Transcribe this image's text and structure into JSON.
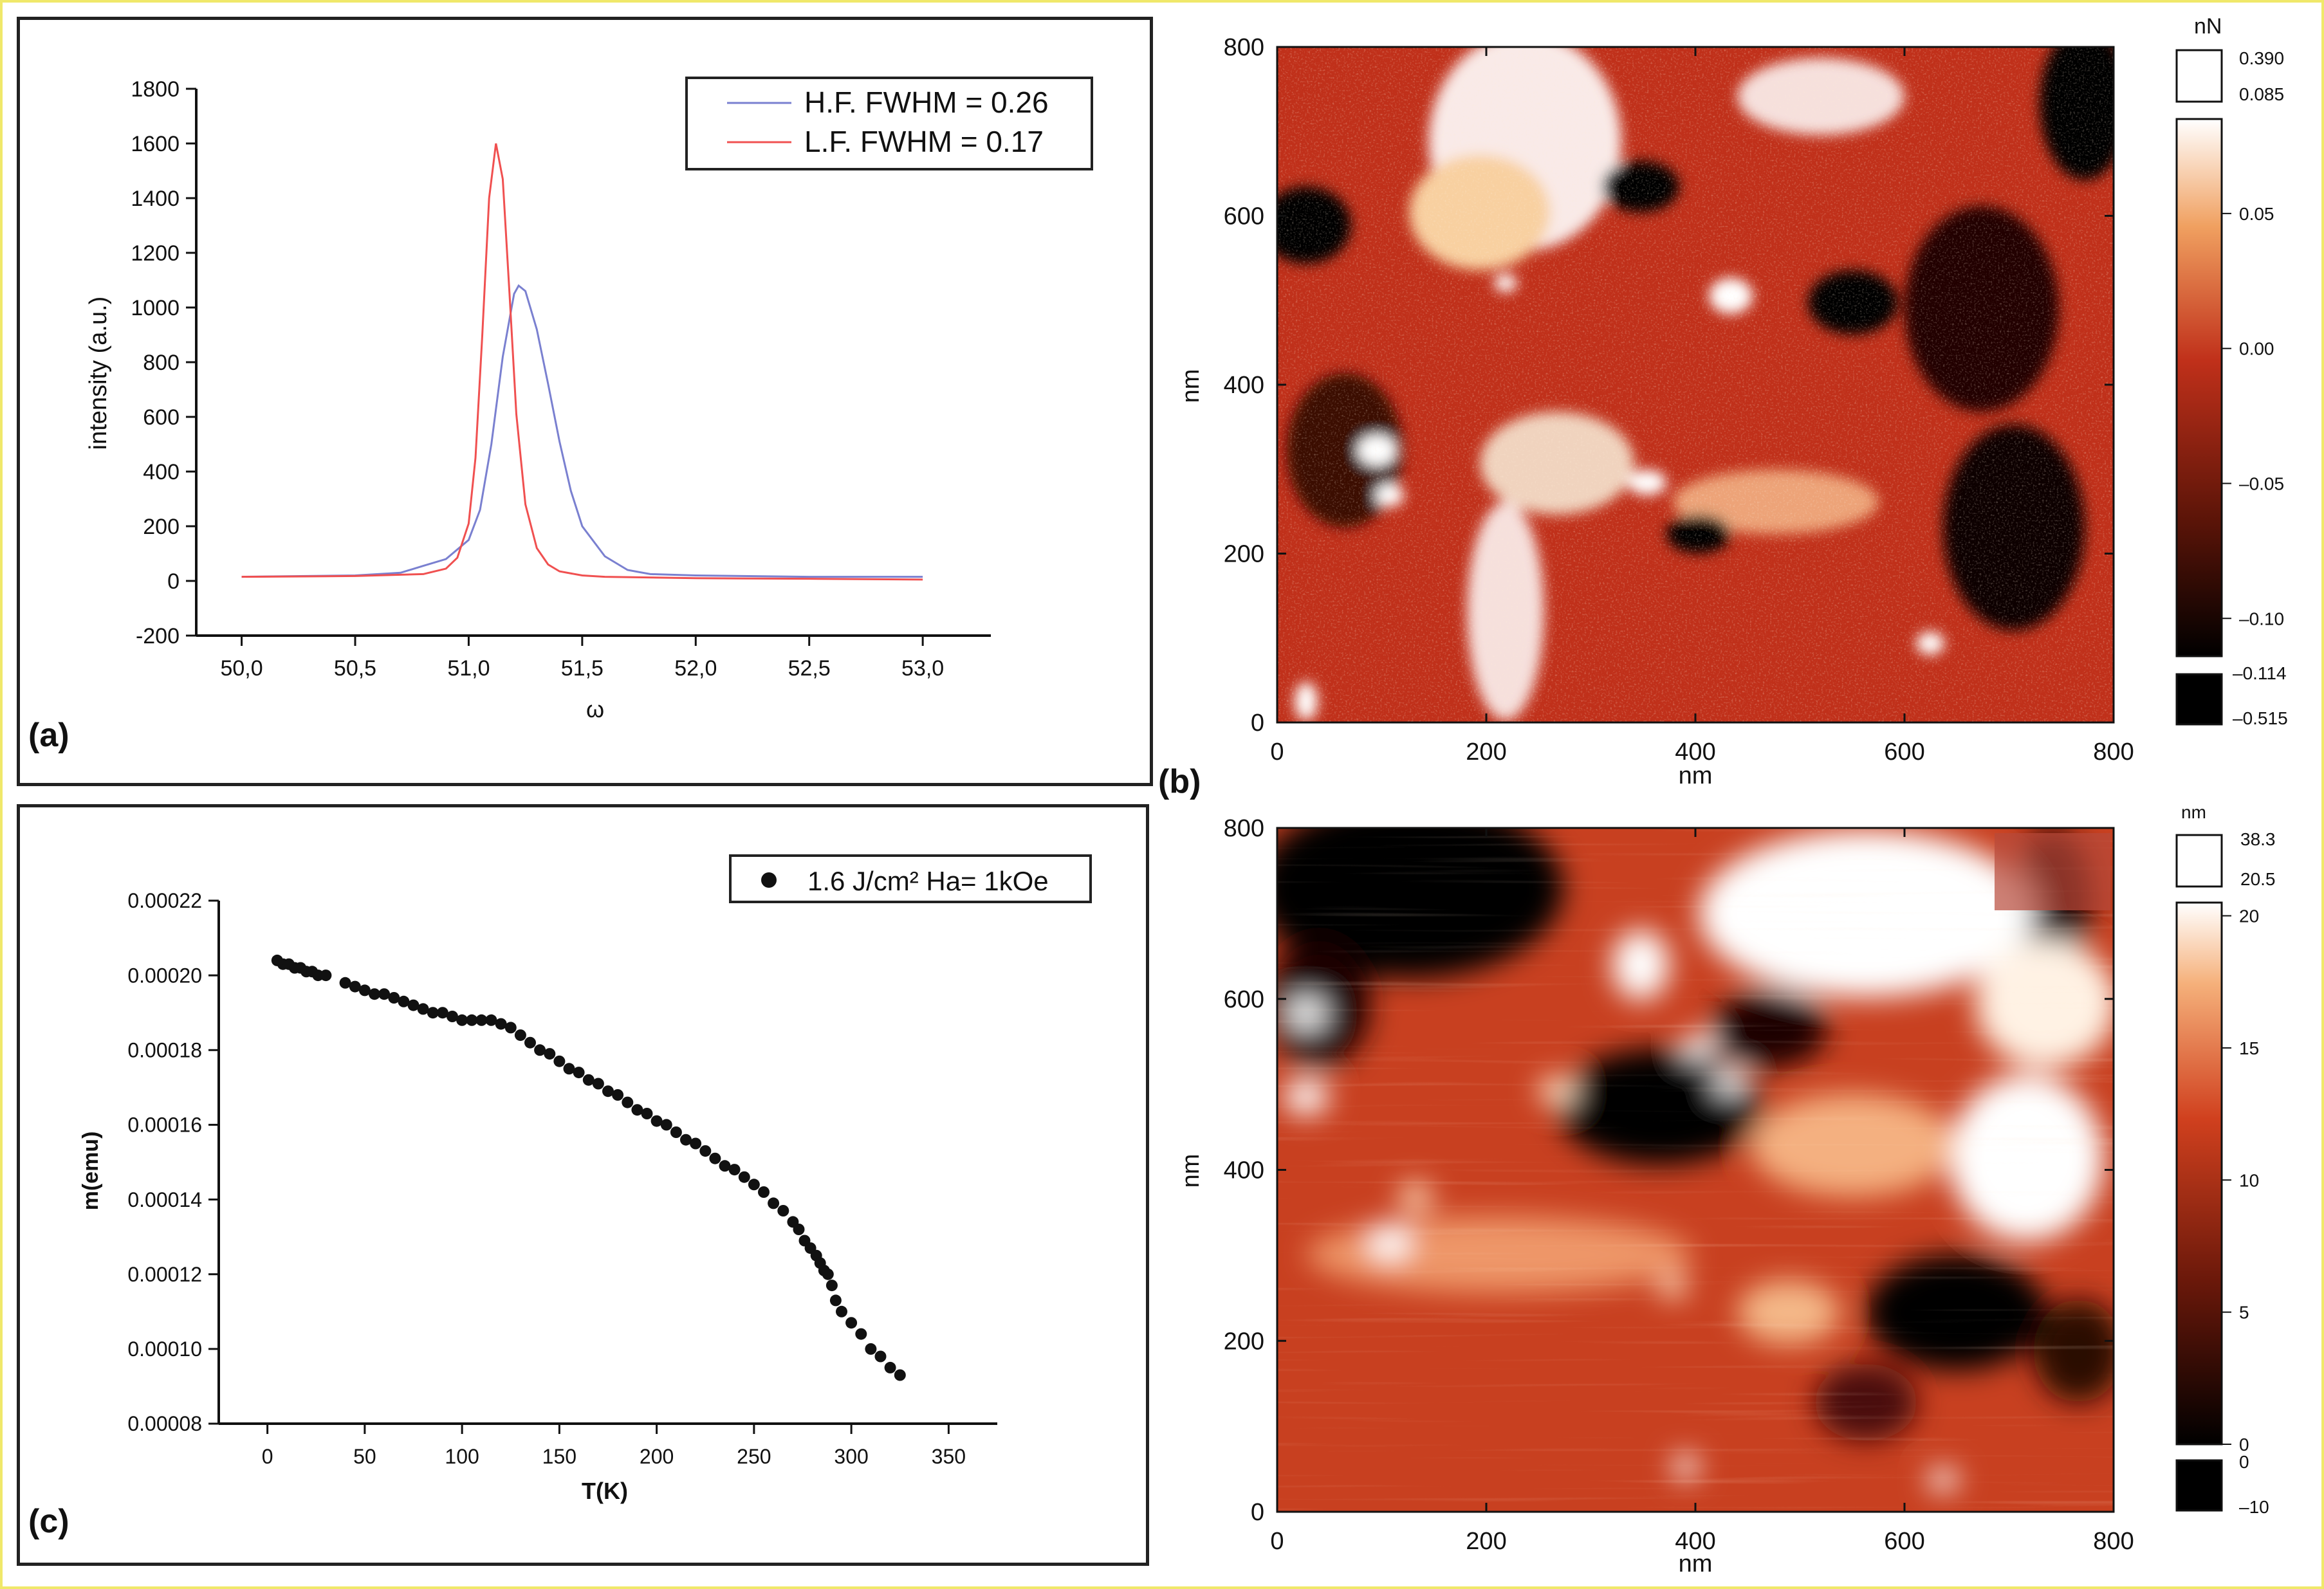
{
  "colors": {
    "hf_line": "#7a80d0",
    "lf_line": "#f05050",
    "marker": "#111111",
    "afm_dark": "#000000",
    "afm_mid": "#c0301a",
    "afm_light": "#ffffff"
  },
  "panel_labels": {
    "a": "(a)",
    "b": "(b)",
    "c": "(c)"
  },
  "chart_data": [
    {
      "id": "a",
      "type": "line",
      "title": "",
      "xlabel": "ω",
      "ylabel": "intensity (a.u.)",
      "xlim": [
        49.8,
        53.3
      ],
      "ylim": [
        -200,
        1800
      ],
      "xticks": [
        "50,0",
        "50,5",
        "51,0",
        "51,5",
        "52,0",
        "52,5",
        "53,0"
      ],
      "xtick_values": [
        50.0,
        50.5,
        51.0,
        51.5,
        52.0,
        52.5,
        53.0
      ],
      "yticks": [
        "-200",
        "0",
        "200",
        "400",
        "600",
        "800",
        "1000",
        "1200",
        "1400",
        "1600",
        "1800"
      ],
      "ytick_values": [
        -200,
        0,
        200,
        400,
        600,
        800,
        1000,
        1200,
        1400,
        1600,
        1800
      ],
      "legend_position": "top-right",
      "series": [
        {
          "name": "H.F. FWHM = 0.26",
          "x": [
            50.0,
            50.5,
            50.7,
            50.8,
            50.9,
            51.0,
            51.05,
            51.1,
            51.15,
            51.2,
            51.22,
            51.25,
            51.3,
            51.35,
            51.4,
            51.45,
            51.5,
            51.6,
            51.7,
            51.8,
            52.0,
            52.5,
            53.0
          ],
          "y": [
            15,
            20,
            30,
            55,
            80,
            150,
            260,
            500,
            820,
            1050,
            1080,
            1060,
            920,
            720,
            510,
            330,
            200,
            90,
            40,
            25,
            20,
            15,
            15
          ]
        },
        {
          "name": "L.F. FWHM = 0.17",
          "x": [
            50.0,
            50.5,
            50.8,
            50.9,
            50.95,
            51.0,
            51.03,
            51.06,
            51.09,
            51.12,
            51.15,
            51.18,
            51.21,
            51.25,
            51.3,
            51.35,
            51.4,
            51.5,
            51.6,
            52.0,
            52.5,
            53.0
          ],
          "y": [
            15,
            18,
            25,
            45,
            85,
            210,
            450,
            900,
            1400,
            1600,
            1470,
            1050,
            610,
            280,
            120,
            60,
            35,
            20,
            15,
            10,
            8,
            5
          ]
        }
      ]
    },
    {
      "id": "c",
      "type": "scatter",
      "title": "",
      "xlabel": "T(K)",
      "ylabel": "m(emu)",
      "xlim": [
        -25,
        375
      ],
      "ylim": [
        8e-05,
        0.00022
      ],
      "xticks": [
        "0",
        "50",
        "100",
        "150",
        "200",
        "250",
        "300",
        "350"
      ],
      "xtick_values": [
        0,
        50,
        100,
        150,
        200,
        250,
        300,
        350
      ],
      "yticks": [
        "0.00008",
        "0.00010",
        "0.00012",
        "0.00014",
        "0.00016",
        "0.00018",
        "0.00020",
        "0.00022"
      ],
      "ytick_values": [
        8e-05,
        0.0001,
        0.00012,
        0.00014,
        0.00016,
        0.00018,
        0.0002,
        0.00022
      ],
      "legend_position": "top-right",
      "series": [
        {
          "name": "1.6 J/cm² Ha= 1kOe",
          "x": [
            5,
            8,
            11,
            14,
            17,
            20,
            23,
            26,
            30,
            40,
            45,
            50,
            55,
            60,
            65,
            70,
            75,
            80,
            85,
            90,
            95,
            100,
            105,
            110,
            115,
            120,
            125,
            130,
            135,
            140,
            145,
            150,
            155,
            160,
            165,
            170,
            175,
            180,
            185,
            190,
            195,
            200,
            205,
            210,
            215,
            220,
            225,
            230,
            235,
            240,
            245,
            250,
            255,
            260,
            265,
            270,
            273,
            276,
            279,
            282,
            284,
            286,
            288,
            290,
            292,
            295,
            300,
            305,
            310,
            315,
            320,
            325
          ],
          "y": [
            0.000204,
            0.000203,
            0.000203,
            0.000202,
            0.000202,
            0.000201,
            0.000201,
            0.0002,
            0.0002,
            0.000198,
            0.000197,
            0.000196,
            0.000195,
            0.000195,
            0.000194,
            0.000193,
            0.000192,
            0.000191,
            0.00019,
            0.00019,
            0.000189,
            0.000188,
            0.000188,
            0.000188,
            0.000188,
            0.000187,
            0.000186,
            0.000184,
            0.000182,
            0.00018,
            0.000179,
            0.000177,
            0.000175,
            0.000174,
            0.000172,
            0.000171,
            0.000169,
            0.000168,
            0.000166,
            0.000164,
            0.000163,
            0.000161,
            0.00016,
            0.000158,
            0.000156,
            0.000155,
            0.000153,
            0.000151,
            0.000149,
            0.000148,
            0.000146,
            0.000144,
            0.000142,
            0.000139,
            0.000137,
            0.000134,
            0.000132,
            0.000129,
            0.000127,
            0.000125,
            0.000123,
            0.000121,
            0.00012,
            0.000117,
            0.000113,
            0.00011,
            0.000107,
            0.000104,
            0.0001,
            9.8e-05,
            9.5e-05,
            9.3e-05
          ]
        }
      ]
    },
    {
      "id": "b1",
      "type": "heatmap",
      "title": "",
      "xlabel": "nm",
      "ylabel": "nm",
      "xlim": [
        0,
        800
      ],
      "ylim": [
        0,
        800
      ],
      "xticks": [
        "0",
        "200",
        "400",
        "600",
        "800"
      ],
      "xtick_values": [
        0,
        200,
        400,
        600,
        800
      ],
      "yticks": [
        "0",
        "200",
        "400",
        "600",
        "800"
      ],
      "ytick_values": [
        0,
        200,
        400,
        600,
        800
      ],
      "colorbar": {
        "unit": "nN",
        "top_box_labels": [
          "0.390",
          "0.085"
        ],
        "ticks": [
          "0.05",
          "0.00",
          "–0.05",
          "–0.10"
        ],
        "tick_values": [
          0.05,
          0.0,
          -0.05,
          -0.1
        ],
        "range": [
          -0.114,
          0.085
        ],
        "bottom_box_labels": [
          "–0.114",
          "–0.515"
        ]
      }
    },
    {
      "id": "b2",
      "type": "heatmap",
      "title": "",
      "xlabel": "nm",
      "ylabel": "nm",
      "xlim": [
        0,
        800
      ],
      "ylim": [
        0,
        800
      ],
      "xticks": [
        "0",
        "200",
        "400",
        "600",
        "800"
      ],
      "xtick_values": [
        0,
        200,
        400,
        600,
        800
      ],
      "yticks": [
        "0",
        "200",
        "400",
        "600",
        "800"
      ],
      "ytick_values": [
        0,
        200,
        400,
        600,
        800
      ],
      "colorbar": {
        "unit": "nm",
        "top_box_labels": [
          "38.3",
          "20.5"
        ],
        "ticks": [
          "20",
          "15",
          "10",
          "5",
          "0"
        ],
        "tick_values": [
          20,
          15,
          10,
          5,
          0
        ],
        "range": [
          0,
          20.5
        ],
        "bottom_box_labels": [
          "0",
          "–10"
        ]
      }
    }
  ]
}
